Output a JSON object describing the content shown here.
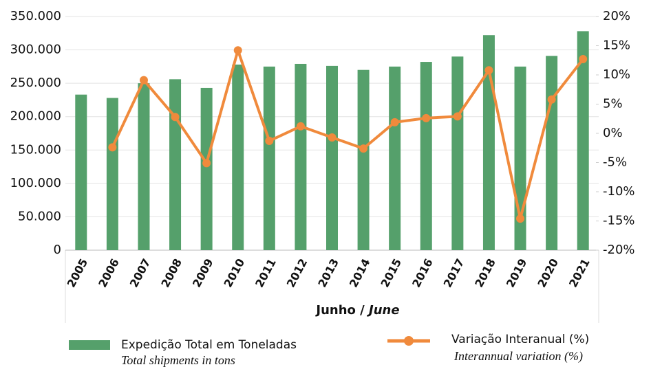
{
  "chart_data": {
    "type": "bar_line",
    "categories": [
      "2005",
      "2006",
      "2007",
      "2008",
      "2009",
      "2010",
      "2011",
      "2012",
      "2013",
      "2014",
      "2015",
      "2016",
      "2017",
      "2018",
      "2019",
      "2020",
      "2021"
    ],
    "xlabel": {
      "pt": "Junho /",
      "en": "June"
    },
    "series": [
      {
        "name": "Expedição Total em Toneladas",
        "name_en": "Total shipments in tons",
        "color": "#55a06b",
        "type": "bar",
        "values": [
          233000,
          228000,
          250000,
          256000,
          243000,
          278000,
          275000,
          279000,
          276000,
          270000,
          275000,
          282000,
          290000,
          322000,
          275000,
          291000,
          328000
        ]
      },
      {
        "name": "Variação Interanual (%)",
        "name_en": "Interannual variation (%)",
        "color": "#f08a3c",
        "type": "line",
        "axis": "y2",
        "values": [
          null,
          -2.4,
          9.1,
          2.8,
          -5.1,
          14.2,
          -1.3,
          1.2,
          -0.7,
          -2.6,
          1.9,
          2.6,
          2.9,
          10.8,
          -14.6,
          5.8,
          12.7
        ]
      }
    ],
    "ylim": [
      0,
      350000
    ],
    "yticks": [
      0,
      {
        "value": 50000,
        "label": "50.000"
      },
      {
        "value": 100000,
        "label": "100.000"
      },
      {
        "value": 150000,
        "label": "150.000"
      },
      {
        "value": 200000,
        "label": "200.000"
      },
      {
        "value": 250000,
        "label": "250.000"
      },
      {
        "value": 300000,
        "label": "300.000"
      },
      {
        "value": 350000,
        "label": "350.000"
      }
    ],
    "y2lim": [
      -20,
      20
    ],
    "y2ticks": [
      {
        "value": -20,
        "label": "-20%"
      },
      {
        "value": -15,
        "label": "-15%"
      },
      {
        "value": -10,
        "label": "-10%"
      },
      {
        "value": -5,
        "label": "-5%"
      },
      {
        "value": 0,
        "label": "0%"
      },
      {
        "value": 5,
        "label": "5%"
      },
      {
        "value": 10,
        "label": "10%"
      },
      {
        "value": 15,
        "label": "15%"
      },
      {
        "value": 20,
        "label": "20%"
      }
    ],
    "grid": true
  }
}
